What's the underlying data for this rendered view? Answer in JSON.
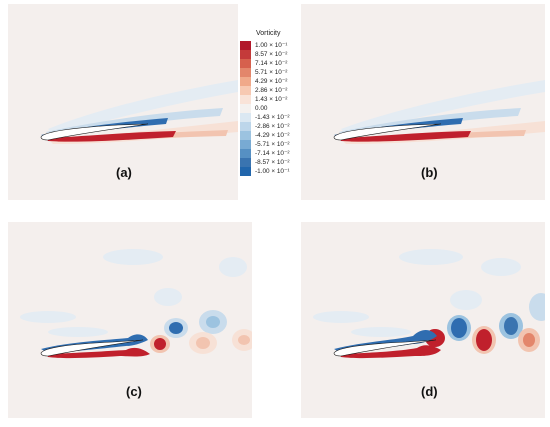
{
  "legend": {
    "title": "Vorticity",
    "entries": [
      {
        "label": "1.00 × 10⁻¹",
        "color": "#b2182b"
      },
      {
        "label": "8.57 × 10⁻²",
        "color": "#c43a3a"
      },
      {
        "label": "7.14 × 10⁻²",
        "color": "#d6604d"
      },
      {
        "label": "5.71 × 10⁻²",
        "color": "#e3866b"
      },
      {
        "label": "4.29 × 10⁻²",
        "color": "#f0a98a"
      },
      {
        "label": "2.86 × 10⁻²",
        "color": "#f7c9b2"
      },
      {
        "label": "1.43 × 10⁻²",
        "color": "#f9e3d8"
      },
      {
        "label": "0.00",
        "color": "#f4f1ef"
      },
      {
        "label": "-1.43 × 10⁻²",
        "color": "#dbe8f2"
      },
      {
        "label": "-2.86 × 10⁻²",
        "color": "#bdd6ea"
      },
      {
        "label": "-4.29 × 10⁻²",
        "color": "#9cc3e0"
      },
      {
        "label": "-5.71 × 10⁻²",
        "color": "#78aad3"
      },
      {
        "label": "-7.14 × 10⁻²",
        "color": "#5690c3"
      },
      {
        "label": "-8.57 × 10⁻²",
        "color": "#3a74b0"
      },
      {
        "label": "-1.00 × 10⁻¹",
        "color": "#2166ac"
      }
    ]
  },
  "panels": [
    {
      "label": "(a)"
    },
    {
      "label": "(b)"
    },
    {
      "label": "(c)"
    },
    {
      "label": "(d)"
    }
  ],
  "colors": {
    "background": "#f4efed",
    "positive": "#c0202c",
    "negative": "#2f6db0",
    "weak_positive": "#f2c4b0",
    "weak_negative": "#c9dcec",
    "faint_negative": "#e4ecf3",
    "airfoil_fill": "#ffffff"
  }
}
